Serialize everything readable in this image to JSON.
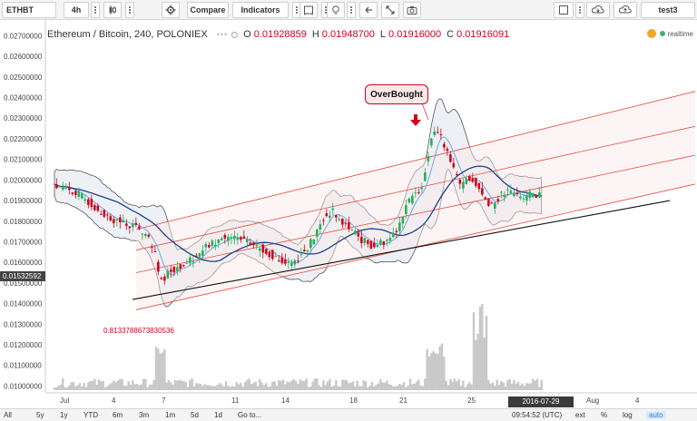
{
  "toolbar": {
    "symbol": "ETHBT",
    "interval": "4h",
    "compare_label": "Compare",
    "indicators_label": "Indicators",
    "user": "test3"
  },
  "legend": {
    "title": "Ethereum / Bitcoin, 240, POLONIEX",
    "open_key": "O",
    "open": "0.01928859",
    "high_key": "H",
    "high": "0.01948700",
    "low_key": "L",
    "low": "0.01916000",
    "close_key": "C",
    "close": "0.01916091",
    "status": "realtime"
  },
  "annotations": {
    "overbought": "OverBought",
    "fib_value": "0.8133788673830536",
    "price_tag": "0.01532592",
    "date_tag": "2016-07-29 08:00:00"
  },
  "bottom_bar": {
    "ranges": [
      "All",
      "5y",
      "1y",
      "YTD",
      "6m",
      "3m",
      "1m",
      "5d",
      "1d",
      "Go to..."
    ],
    "clock": "09:54:52 (UTC)",
    "options": [
      "ext",
      "%",
      "log",
      "auto"
    ]
  },
  "colors": {
    "up": "#27ae60",
    "down": "#d0021b",
    "ma_dark": "#1f3f8f",
    "ma_light": "#6fa8e6",
    "band": "#555555",
    "channel": "#e74c3c"
  },
  "chart_data": {
    "type": "candlestick",
    "symbol": "ETH/BTC",
    "exchange": "POLONIEX",
    "interval_minutes": 240,
    "y_tick_labels": [
      "0.02700000",
      "0.02600000",
      "0.02500000",
      "0.02400000",
      "0.02300000",
      "0.02200000",
      "0.02100000",
      "0.02000000",
      "0.01900000",
      "0.01800000",
      "0.01700000",
      "0.01600000",
      "0.01500000",
      "0.01400000",
      "0.01300000",
      "0.01200000",
      "0.01100000",
      "0.01000000"
    ],
    "x_tick_labels": [
      "Jul",
      "4",
      "7",
      "11",
      "14",
      "18",
      "21",
      "25",
      "Aug",
      "4"
    ],
    "ylim": [
      0.0098,
      0.0275
    ],
    "price_path": [
      [
        0,
        0.0198
      ],
      [
        10,
        0.0196
      ],
      [
        20,
        0.0194
      ],
      [
        30,
        0.019
      ],
      [
        40,
        0.0186
      ],
      [
        50,
        0.0182
      ],
      [
        60,
        0.018
      ],
      [
        72,
        0.0178
      ],
      [
        80,
        0.0176
      ],
      [
        88,
        0.0172
      ],
      [
        95,
        0.0163
      ],
      [
        100,
        0.015
      ],
      [
        108,
        0.0156
      ],
      [
        118,
        0.0158
      ],
      [
        130,
        0.0162
      ],
      [
        145,
        0.0168
      ],
      [
        160,
        0.0172
      ],
      [
        175,
        0.0171
      ],
      [
        190,
        0.0168
      ],
      [
        205,
        0.0164
      ],
      [
        215,
        0.016
      ],
      [
        225,
        0.016
      ],
      [
        235,
        0.0165
      ],
      [
        245,
        0.0172
      ],
      [
        255,
        0.0182
      ],
      [
        262,
        0.0185
      ],
      [
        270,
        0.018
      ],
      [
        280,
        0.0176
      ],
      [
        290,
        0.0171
      ],
      [
        300,
        0.0168
      ],
      [
        310,
        0.017
      ],
      [
        318,
        0.0172
      ],
      [
        325,
        0.0178
      ],
      [
        332,
        0.0188
      ],
      [
        340,
        0.0192
      ],
      [
        348,
        0.0199
      ],
      [
        352,
        0.021
      ],
      [
        356,
        0.0222
      ],
      [
        360,
        0.0225
      ],
      [
        365,
        0.022
      ],
      [
        372,
        0.0214
      ],
      [
        378,
        0.0203
      ],
      [
        384,
        0.0196
      ],
      [
        390,
        0.0202
      ],
      [
        396,
        0.02
      ],
      [
        402,
        0.0195
      ],
      [
        408,
        0.019
      ],
      [
        414,
        0.0188
      ],
      [
        420,
        0.0192
      ],
      [
        428,
        0.0194
      ],
      [
        436,
        0.0193
      ],
      [
        444,
        0.0192
      ],
      [
        452,
        0.0193
      ],
      [
        460,
        0.0193
      ]
    ]
  }
}
